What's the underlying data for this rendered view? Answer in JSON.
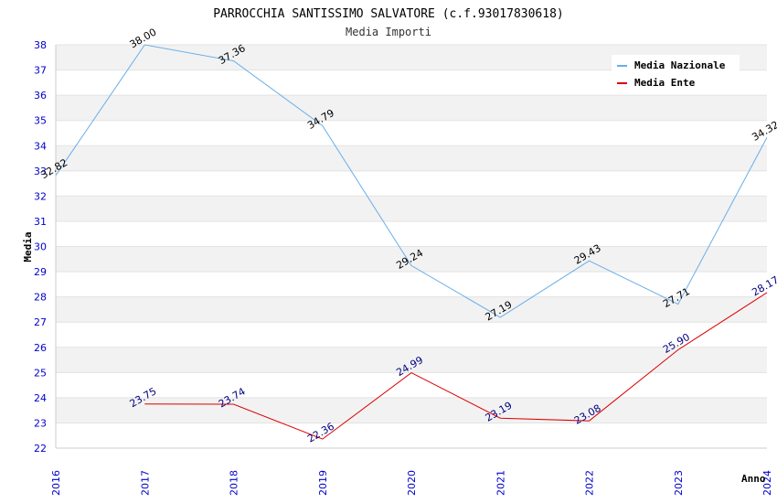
{
  "chart_data": {
    "type": "line",
    "title": "PARROCCHIA SANTISSIMO SALVATORE (c.f.93017830618)",
    "subtitle": "Media Importi",
    "xlabel": "Anno",
    "ylabel": "Media",
    "ylim": [
      22,
      38
    ],
    "yticks": [
      "22",
      "23",
      "24",
      "25",
      "26",
      "27",
      "28",
      "29",
      "30",
      "31",
      "32",
      "33",
      "34",
      "35",
      "36",
      "37",
      "38"
    ],
    "categories": [
      "2016",
      "2017",
      "2018",
      "2019",
      "2020",
      "2021",
      "2022",
      "2023",
      "2024"
    ],
    "legend_position": "top-right",
    "grid": true,
    "series": [
      {
        "name": "Media Nazionale",
        "color": "#6aaee8",
        "label_color": "#000000",
        "values": [
          32.82,
          38.0,
          37.36,
          34.79,
          29.24,
          27.19,
          29.43,
          27.71,
          34.32
        ],
        "labels": [
          "32.82",
          "38.00",
          "37.36",
          "34.79",
          "29.24",
          "27.19",
          "29.43",
          "27.71",
          "34.32"
        ]
      },
      {
        "name": "Media Ente",
        "color": "#dd0000",
        "label_color": "#000080",
        "values": [
          null,
          23.75,
          23.74,
          22.36,
          24.99,
          23.19,
          23.08,
          25.9,
          28.17
        ],
        "labels": [
          null,
          "23.75",
          "23.74",
          "22.36",
          "24.99",
          "23.19",
          "23.08",
          "25.90",
          "28.17"
        ]
      }
    ]
  }
}
